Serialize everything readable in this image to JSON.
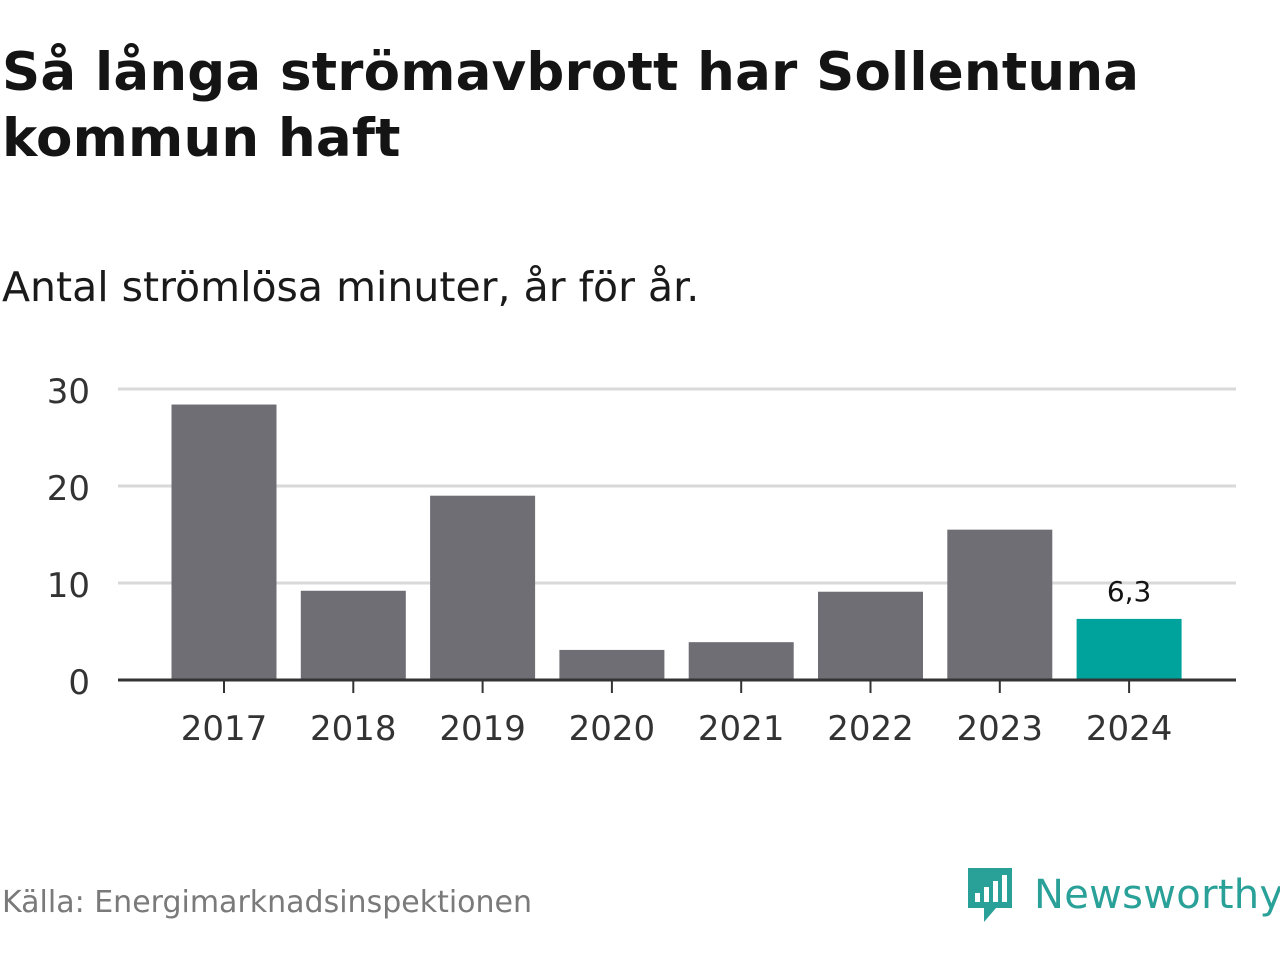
{
  "title": "Så långa strömavbrott har Sollentuna kommun haft",
  "subtitle": "Antal strömlösa minuter, år för år.",
  "source": "Källa: Energimarknadsinspektionen",
  "brand": {
    "name": "Newsworthy",
    "icon": "newsworthy-logo-icon",
    "color": "#2aa198"
  },
  "chart_data": {
    "type": "bar",
    "categories": [
      "2017",
      "2018",
      "2019",
      "2020",
      "2021",
      "2022",
      "2023",
      "2024"
    ],
    "values": [
      28.4,
      9.2,
      19.0,
      3.1,
      3.9,
      9.1,
      15.5,
      6.3
    ],
    "data_labels": [
      "",
      "",
      "",
      "",
      "",
      "",
      "",
      "6,3"
    ],
    "highlight_index": 7,
    "colors": {
      "bar": "#6f6e75",
      "highlight": "#00a39b",
      "grid": "#d9d9d9",
      "axis": "#333333"
    },
    "title": "",
    "xlabel": "",
    "ylabel": "",
    "ylim": [
      0,
      30
    ],
    "yticks": [
      "0",
      "10",
      "20",
      "30"
    ],
    "grid": true,
    "legend": "none"
  }
}
